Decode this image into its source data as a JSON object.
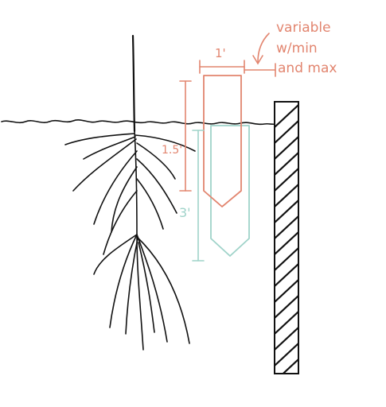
{
  "labels": {
    "width_dim": "1'",
    "note_line1": "variable",
    "note_line2": "w/min",
    "note_line3": "and max",
    "depth_short": "1.5'",
    "depth_long": "3'"
  },
  "colors": {
    "ink": "#111111",
    "salmon": "#e2856f",
    "teal": "#9fd3c9",
    "background": "#ffffff"
  }
}
